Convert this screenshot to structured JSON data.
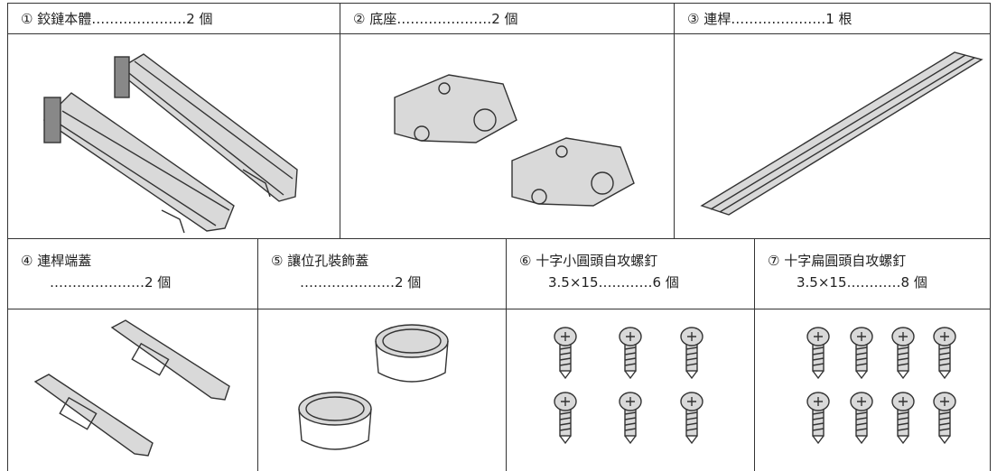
{
  "parts": [
    {
      "lines": [
        "① 鉸鏈本體…………………2 個"
      ]
    },
    {
      "lines": [
        "② 底座…………………2 個"
      ]
    },
    {
      "lines": [
        "③ 連桿…………………1 根"
      ]
    },
    {
      "lines": [
        "④ 連桿端蓋",
        "…………………2 個"
      ]
    },
    {
      "lines": [
        "⑤ 讓位孔裝飾蓋",
        "…………………2 個"
      ]
    },
    {
      "lines": [
        "⑥ 十字小圓頭自攻螺釘",
        "3.5×15…………6 個"
      ]
    },
    {
      "lines": [
        "⑦ 十字扁圓頭自攻螺釘",
        "3.5×15…………8 個"
      ]
    }
  ]
}
